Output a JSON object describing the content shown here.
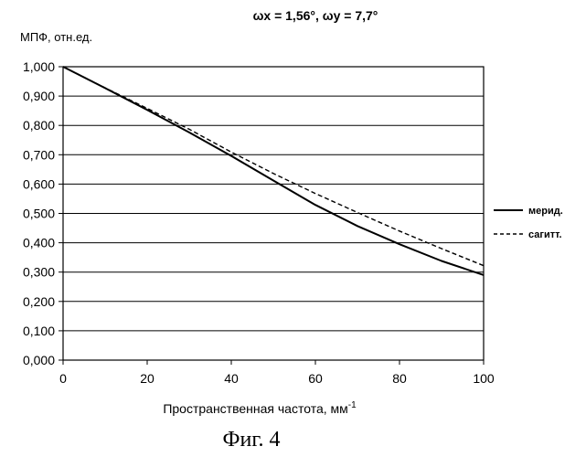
{
  "chart_data": {
    "type": "line",
    "title": "ωx = 1,56°, ωy = 7,7°",
    "ylabel": "МПФ, отн.ед.",
    "xlabel": "Пространственная частота, мм",
    "xlabel_superscript": "-1",
    "caption": "Фиг. 4",
    "xlim": [
      0,
      100
    ],
    "ylim": [
      0,
      1
    ],
    "x_ticks": [
      "0",
      "20",
      "40",
      "60",
      "80",
      "100"
    ],
    "y_ticks": [
      "0,000",
      "0,100",
      "0,200",
      "0,300",
      "0,400",
      "0,500",
      "0,600",
      "0,700",
      "0,800",
      "0,900",
      "1,000"
    ],
    "grid": "horizontal",
    "legend_position": "right",
    "x": [
      0,
      10,
      20,
      30,
      40,
      50,
      60,
      70,
      80,
      90,
      100
    ],
    "series": [
      {
        "name": "мерид.",
        "style": "solid",
        "values": [
          1.0,
          0.927,
          0.853,
          0.776,
          0.696,
          0.612,
          0.529,
          0.457,
          0.395,
          0.338,
          0.29
        ]
      },
      {
        "name": "сагитт.",
        "style": "dashed",
        "values": [
          1.0,
          0.928,
          0.858,
          0.787,
          0.709,
          0.636,
          0.568,
          0.503,
          0.44,
          0.38,
          0.322
        ]
      }
    ]
  }
}
